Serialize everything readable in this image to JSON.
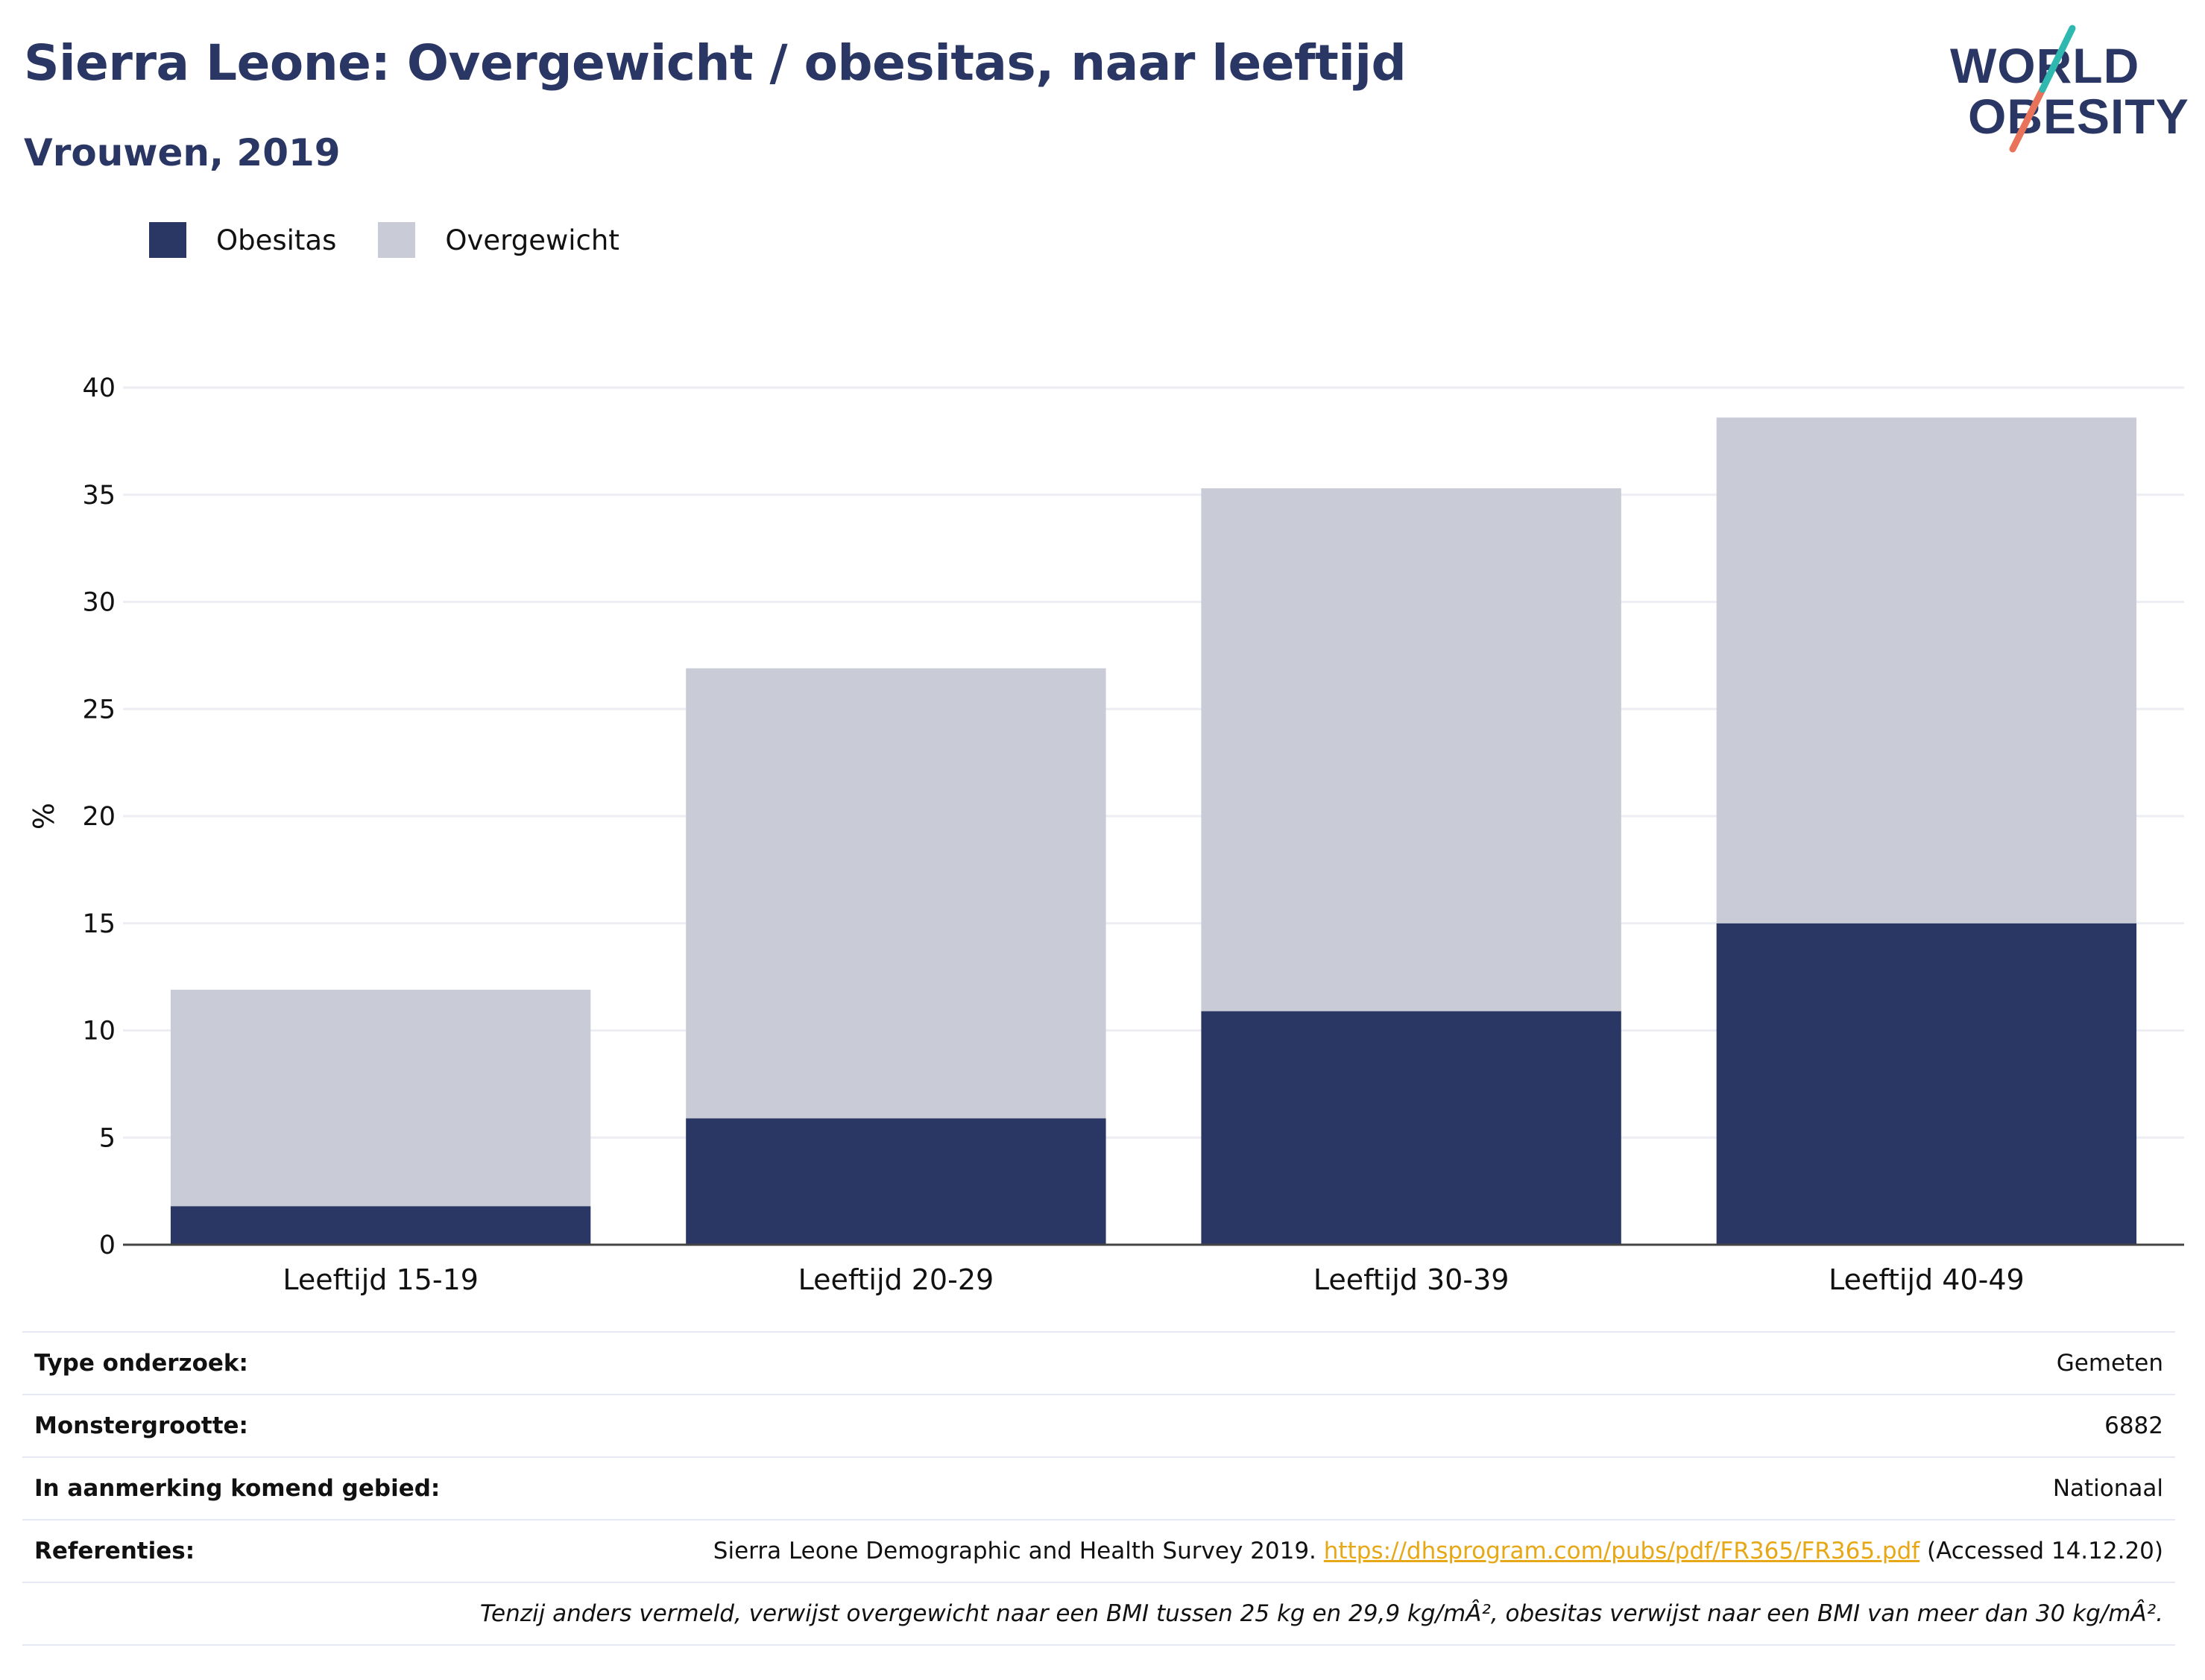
{
  "header": {
    "title": "Sierra Leone: Overgewicht / obesitas, naar leeftijd",
    "subtitle": "Vrouwen, 2019"
  },
  "logo": {
    "line1": "WORLD",
    "line2": "OBESITY"
  },
  "colors": {
    "obesitas": "#2a3663",
    "overgewicht": "#c9cbd6",
    "title": "#2a3663",
    "logo_teal": "#2fb8b0",
    "logo_coral": "#e8735a"
  },
  "chart_data": {
    "type": "bar",
    "stacked": true,
    "categories": [
      "Leeftijd 15-19",
      "Leeftijd 20-29",
      "Leeftijd 30-39",
      "Leeftijd 40-49"
    ],
    "series": [
      {
        "name": "Obesitas",
        "values": [
          1.8,
          5.9,
          10.9,
          15.0
        ]
      },
      {
        "name": "Overgewicht",
        "values": [
          10.1,
          21.0,
          24.4,
          23.6
        ]
      }
    ],
    "ylabel": "%",
    "xlabel": "",
    "ylim": [
      0,
      40
    ],
    "yticks": [
      "0",
      "5",
      "10",
      "15",
      "20",
      "25",
      "30",
      "35",
      "40"
    ],
    "grid": true,
    "legend": "top-left"
  },
  "meta": {
    "rows": [
      {
        "key": "Type onderzoek:",
        "value": "Gemeten"
      },
      {
        "key": "Monstergrootte:",
        "value": "6882"
      },
      {
        "key": "In aanmerking komend gebied:",
        "value": "Nationaal"
      }
    ],
    "references": {
      "key": "Referenties:",
      "text_before": "Sierra Leone Demographic and Health Survey 2019. ",
      "link": "https://dhsprogram.com/pubs/pdf/FR365/FR365.pdf",
      "text_after": " (Accessed 14.12.20)"
    },
    "note": "Tenzij anders vermeld, verwijst overgewicht naar een BMI tussen 25 kg en 29,9 kg/mÂ², obesitas verwijst naar een BMI van meer dan 30 kg/mÂ²."
  }
}
